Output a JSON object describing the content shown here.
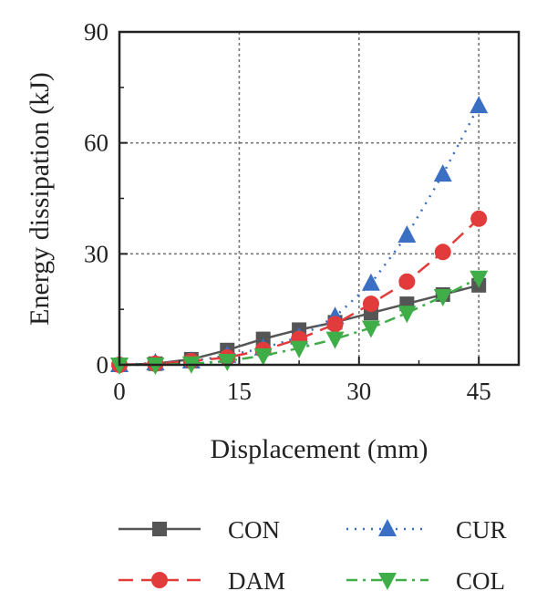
{
  "chart_data": {
    "type": "line",
    "xlabel": "Displacement (mm)",
    "ylabel": "Energy dissipation (kJ)",
    "xlim": [
      0,
      50
    ],
    "ylim": [
      0,
      90
    ],
    "xticks": [
      "0",
      "15",
      "30",
      "45"
    ],
    "xtick_values": [
      0,
      15,
      30,
      45
    ],
    "yticks": [
      "0",
      "30",
      "60",
      "90"
    ],
    "ytick_values": [
      0,
      30,
      60,
      90
    ],
    "grid": "dotted at major ticks",
    "legend_position": "bottom",
    "series": [
      {
        "name": "CON",
        "color": "#555555",
        "marker": "square",
        "line_style": "solid",
        "points": [
          [
            0,
            0
          ],
          [
            4.5,
            0.3
          ],
          [
            9,
            1.5
          ],
          [
            13.5,
            4
          ],
          [
            18,
            7
          ],
          [
            22.5,
            9.5
          ],
          [
            27,
            11.5
          ],
          [
            31.5,
            14
          ],
          [
            36,
            16.5
          ],
          [
            40.5,
            19
          ],
          [
            45,
            21.5
          ]
        ]
      },
      {
        "name": "CUR",
        "color": "#3a6fc4",
        "marker": "triangle-up",
        "line_style": "dotted",
        "points": [
          [
            0,
            0
          ],
          [
            4.5,
            0.5
          ],
          [
            9,
            1
          ],
          [
            13.5,
            2.5
          ],
          [
            18,
            4.5
          ],
          [
            22.5,
            7.5
          ],
          [
            27,
            13
          ],
          [
            31.5,
            22
          ],
          [
            36,
            35
          ],
          [
            40.5,
            51.5
          ],
          [
            45,
            70
          ]
        ]
      },
      {
        "name": "DAM",
        "color": "#e23b3b",
        "marker": "circle",
        "line_style": "dashed",
        "points": [
          [
            0,
            0
          ],
          [
            4.5,
            0.3
          ],
          [
            9,
            1
          ],
          [
            13.5,
            2
          ],
          [
            18,
            4
          ],
          [
            22.5,
            7
          ],
          [
            27,
            11
          ],
          [
            31.5,
            16.5
          ],
          [
            36,
            22.5
          ],
          [
            40.5,
            30.5
          ],
          [
            45,
            39.5
          ]
        ]
      },
      {
        "name": "COL",
        "color": "#3fae49",
        "marker": "triangle-down",
        "line_style": "dash-dot",
        "points": [
          [
            0,
            0
          ],
          [
            4.5,
            0
          ],
          [
            9,
            0.3
          ],
          [
            13.5,
            1
          ],
          [
            18,
            2.5
          ],
          [
            22.5,
            4.5
          ],
          [
            27,
            7
          ],
          [
            31.5,
            10
          ],
          [
            36,
            14
          ],
          [
            40.5,
            18.5
          ],
          [
            45,
            23.5
          ]
        ]
      }
    ]
  }
}
